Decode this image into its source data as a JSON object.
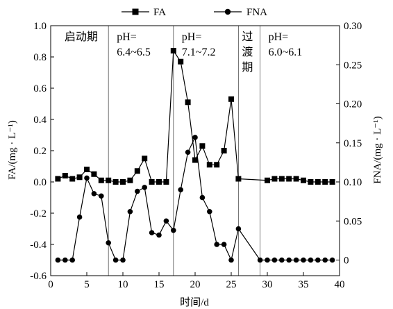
{
  "chart_data": {
    "type": "line",
    "xlabel": "时间/d",
    "ylabel_left": "FA/(mg · L⁻¹)",
    "ylabel_right": "FNA/(mg · L⁻¹)",
    "xlim": [
      0,
      40
    ],
    "ylim_left": [
      -0.6,
      1.0
    ],
    "ylim_right": [
      -0.02,
      0.3
    ],
    "x_ticks": [
      0,
      5,
      10,
      15,
      20,
      25,
      30,
      35,
      40
    ],
    "y_left_ticks": [
      -0.6,
      -0.4,
      -0.2,
      0.0,
      0.2,
      0.4,
      0.6,
      0.8,
      1.0
    ],
    "y_right_ticks": [
      0,
      0.05,
      0.1,
      0.15,
      0.2,
      0.25,
      0.3
    ],
    "grid": false,
    "legend_position": "top",
    "phase_boundaries": [
      8,
      17,
      26,
      29
    ],
    "phases": [
      {
        "label": "启动期",
        "x_start": 0,
        "x_end": 8
      },
      {
        "label_line1": "pH=",
        "label_line2": "6.4~6.5",
        "x_start": 8,
        "x_end": 17
      },
      {
        "label_line1": "pH=",
        "label_line2": "7.1~7.2",
        "x_start": 17,
        "x_end": 26
      },
      {
        "label_line1": "过",
        "label_line2": "渡",
        "label_line3": "期",
        "x_start": 26,
        "x_end": 29
      },
      {
        "label_line1": "pH=",
        "label_line2": "6.0~6.1",
        "x_start": 29,
        "x_end": 40
      }
    ],
    "series": [
      {
        "name": "FA",
        "axis": "left",
        "marker": "square",
        "points": [
          [
            1,
            0.02
          ],
          [
            2,
            0.04
          ],
          [
            3,
            0.02
          ],
          [
            4,
            0.03
          ],
          [
            5,
            0.08
          ],
          [
            6,
            0.05
          ],
          [
            7,
            0.01
          ],
          [
            8,
            0.01
          ],
          [
            9,
            0.0
          ],
          [
            10,
            0.0
          ],
          [
            11,
            0.01
          ],
          [
            12,
            0.07
          ],
          [
            13,
            0.15
          ],
          [
            14,
            0.0
          ],
          [
            15,
            0.0
          ],
          [
            16,
            0.0
          ],
          [
            17,
            0.84
          ],
          [
            18,
            0.77
          ],
          [
            19,
            0.51
          ],
          [
            20,
            0.14
          ],
          [
            21,
            0.23
          ],
          [
            22,
            0.11
          ],
          [
            23,
            0.11
          ],
          [
            24,
            0.2
          ],
          [
            25,
            0.53
          ],
          [
            26,
            0.02
          ],
          [
            30,
            0.01
          ],
          [
            31,
            0.02
          ],
          [
            32,
            0.02
          ],
          [
            33,
            0.02
          ],
          [
            34,
            0.02
          ],
          [
            35,
            0.01
          ],
          [
            36,
            0.0
          ],
          [
            37,
            0.0
          ],
          [
            38,
            0.0
          ],
          [
            39,
            0.0
          ]
        ]
      },
      {
        "name": "FNA",
        "axis": "right",
        "marker": "circle",
        "points": [
          [
            1,
            0.0
          ],
          [
            2,
            0.0
          ],
          [
            3,
            0.0
          ],
          [
            4,
            0.055
          ],
          [
            5,
            0.105
          ],
          [
            6,
            0.085
          ],
          [
            7,
            0.082
          ],
          [
            8,
            0.022
          ],
          [
            9,
            0.0
          ],
          [
            10,
            0.0
          ],
          [
            11,
            0.062
          ],
          [
            12,
            0.088
          ],
          [
            13,
            0.093
          ],
          [
            14,
            0.035
          ],
          [
            15,
            0.032
          ],
          [
            16,
            0.05
          ],
          [
            17,
            0.038
          ],
          [
            18,
            0.09
          ],
          [
            19,
            0.138
          ],
          [
            20,
            0.157
          ],
          [
            21,
            0.08
          ],
          [
            22,
            0.062
          ],
          [
            23,
            0.02
          ],
          [
            24,
            0.02
          ],
          [
            25,
            0.0
          ],
          [
            26,
            0.04
          ],
          [
            29,
            0.0
          ],
          [
            30,
            0.0
          ],
          [
            31,
            0.0
          ],
          [
            32,
            0.0
          ],
          [
            33,
            0.0
          ],
          [
            34,
            0.0
          ],
          [
            35,
            0.0
          ],
          [
            36,
            0.0
          ],
          [
            37,
            0.0
          ],
          [
            38,
            0.0
          ],
          [
            39,
            0.0
          ]
        ]
      }
    ]
  }
}
